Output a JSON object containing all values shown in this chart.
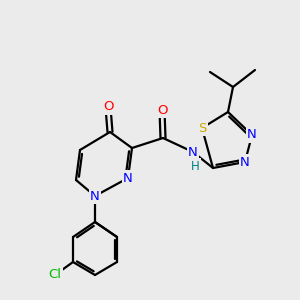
{
  "bg_color": "#ebebeb",
  "bond_color": "#000000",
  "bond_lw": 1.5,
  "atom_colors": {
    "N": "#0000ff",
    "O": "#ff0000",
    "S": "#ccaa00",
    "Cl": "#00bb00",
    "C": "#000000",
    "H": "#008080"
  },
  "font_size": 9
}
